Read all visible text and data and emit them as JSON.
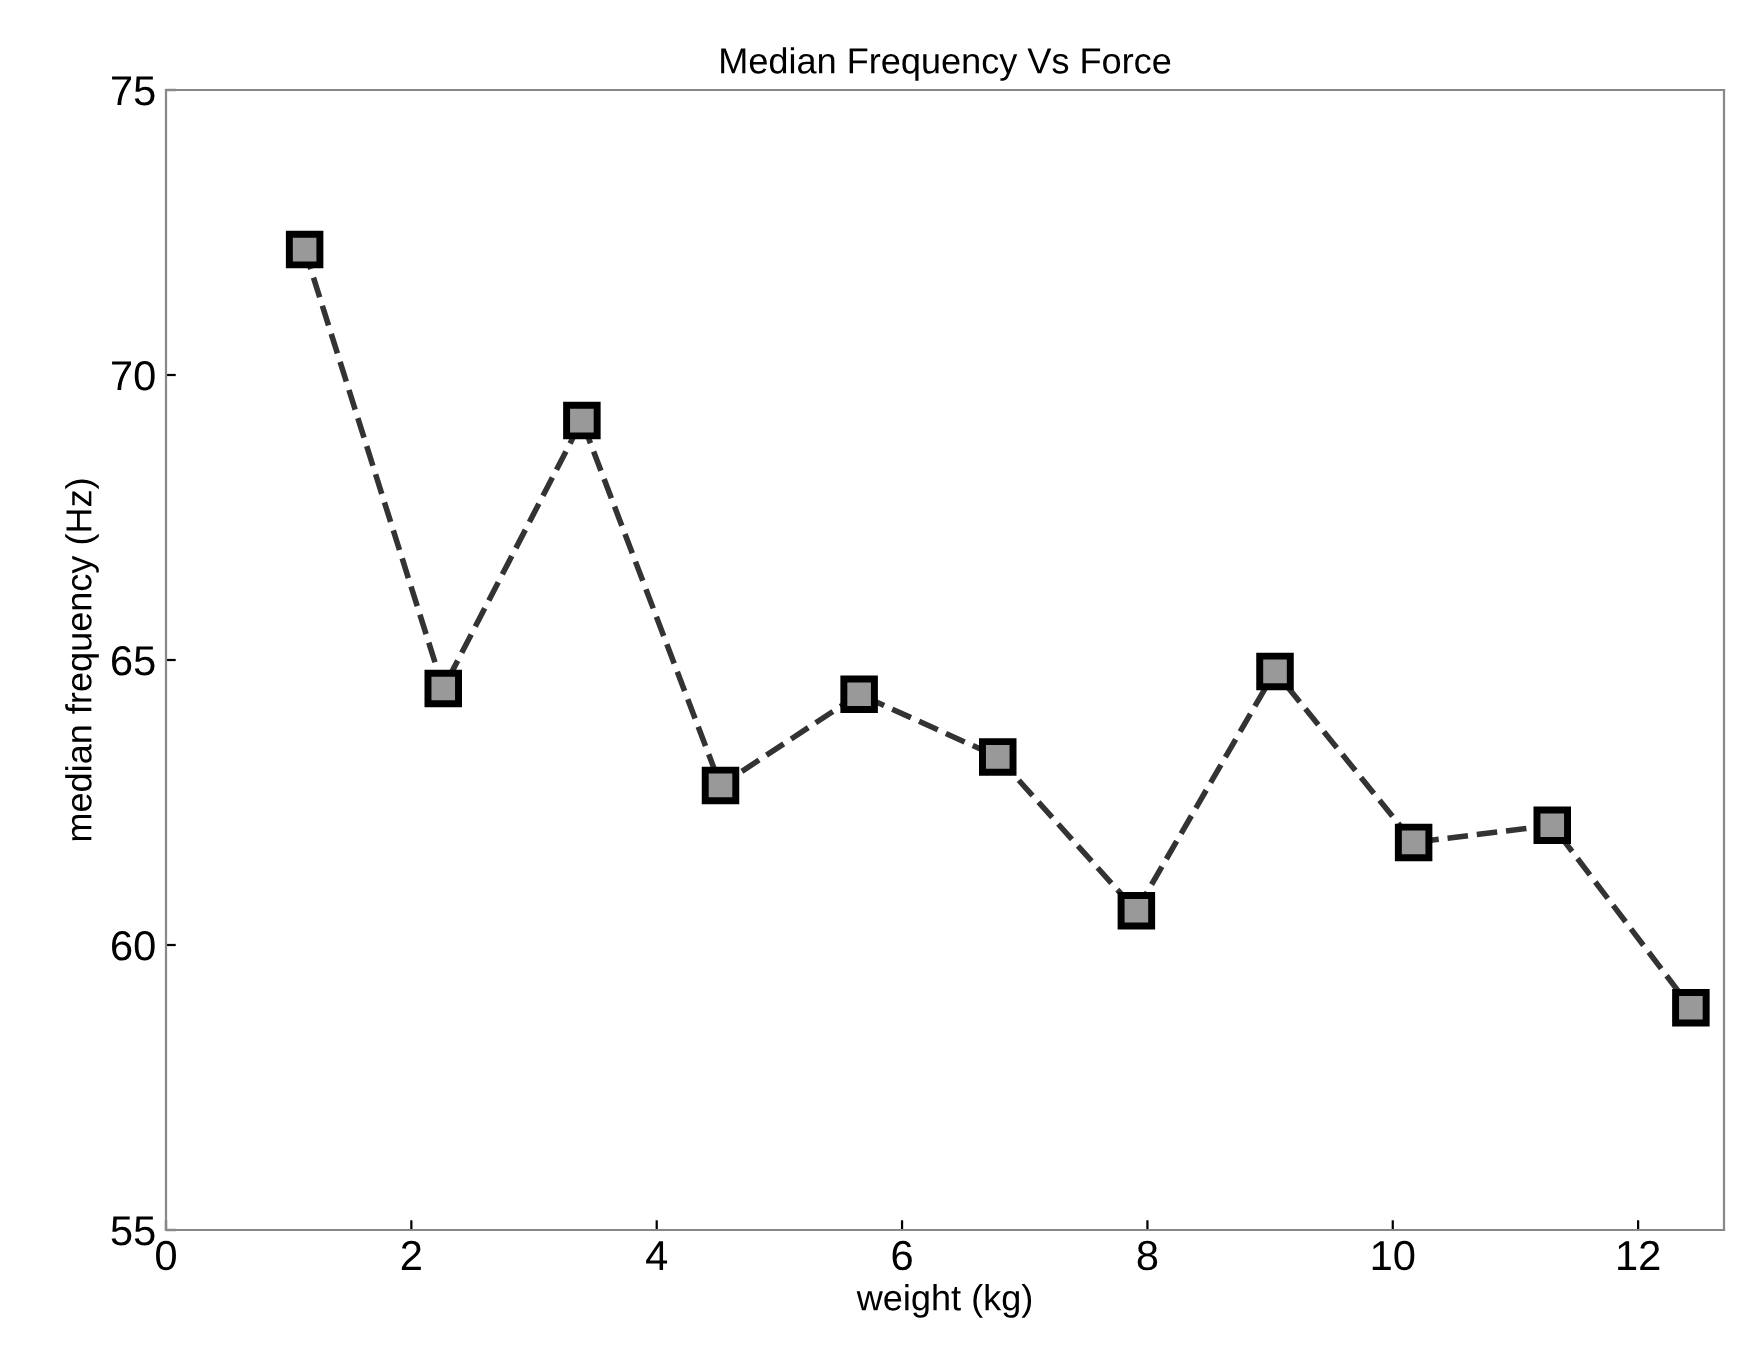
{
  "chart_data": {
    "type": "line",
    "title": "Median Frequency Vs Force",
    "xlabel": "weight (kg)",
    "ylabel": "median frequency (Hz)",
    "x": [
      1.13,
      2.26,
      3.39,
      4.52,
      5.65,
      6.78,
      7.91,
      9.04,
      10.17,
      11.3,
      12.43
    ],
    "series": [
      {
        "color": "#333333",
        "values": [
          72.2,
          64.5,
          69.2,
          62.8,
          64.4,
          63.3,
          60.6,
          64.8,
          61.8,
          62.1,
          58.9
        ]
      }
    ],
    "marker": "square",
    "line_style": "dashed",
    "grid": false,
    "legend": false,
    "xlim": [
      0,
      12.7
    ],
    "xticks": [
      0,
      2,
      4,
      6,
      8,
      10,
      12
    ],
    "ylim": [
      55,
      75
    ],
    "yticks": [
      55,
      60,
      65,
      70,
      75
    ]
  }
}
